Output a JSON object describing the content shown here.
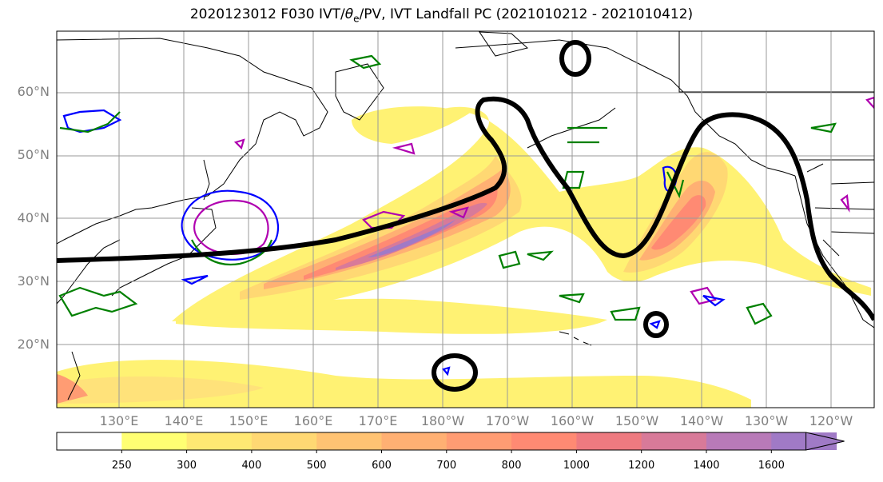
{
  "title": {
    "prefix": "2020123012 F030 IVT/",
    "theta": "θ",
    "theta_sub": "e",
    "suffix": "/PV, IVT Landfall PC (2021010212 - 2021010412)"
  },
  "lat_labels": [
    "60°N",
    "50°N",
    "40°N",
    "30°N",
    "20°N"
  ],
  "lon_labels": [
    "130°E",
    "140°E",
    "150°E",
    "160°E",
    "170°E",
    "180°W",
    "170°W",
    "160°W",
    "150°W",
    "140°W",
    "130°W",
    "120°W"
  ],
  "colorbar": {
    "levels": [
      "250",
      "300",
      "400",
      "500",
      "600",
      "700",
      "800",
      "1000",
      "1200",
      "1400",
      "1600"
    ],
    "colors": [
      "#ffffff",
      "#ffff73",
      "#ffe873",
      "#ffd873",
      "#ffc373",
      "#ffb073",
      "#ff9c73",
      "#ff8a73",
      "#ee7a80",
      "#d87a99",
      "#b87ab8",
      "#a07ac6"
    ]
  },
  "styles": {
    "coast_color": "#000000",
    "pc_contour_color": "#000000",
    "contour_green": "#008000",
    "contour_blue": "#0000ff",
    "contour_magenta": "#b000b0",
    "grid_color": "#999999"
  }
}
